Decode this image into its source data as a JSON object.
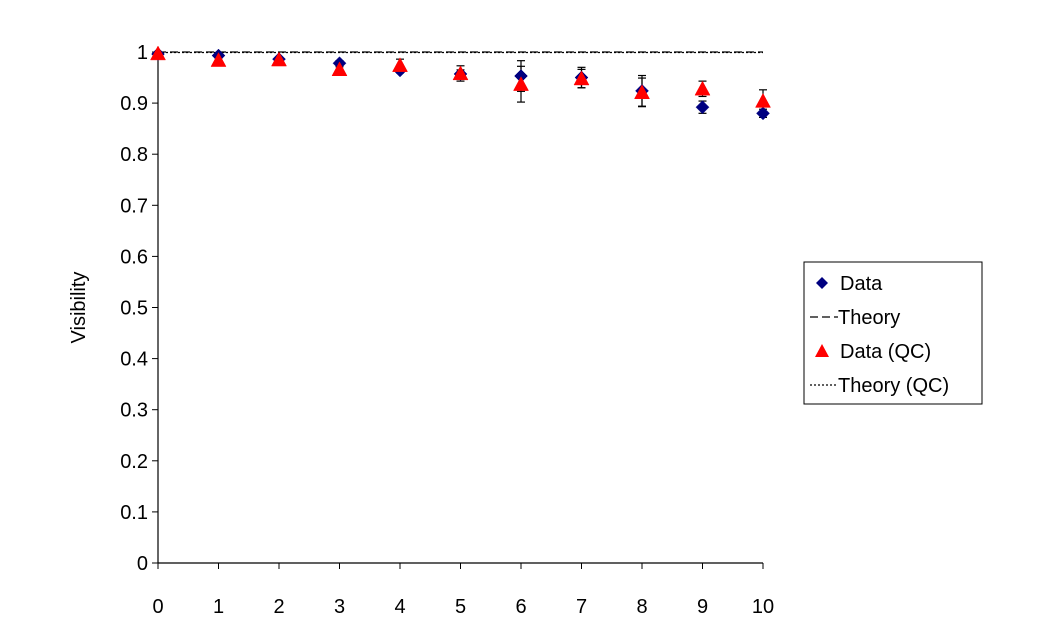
{
  "chart_data": {
    "type": "scatter",
    "title": "",
    "xlabel": "",
    "ylabel": "Visibility",
    "xlim": [
      0,
      10
    ],
    "ylim": [
      0,
      1
    ],
    "x_ticks": [
      "0",
      "1",
      "2",
      "3",
      "4",
      "5",
      "6",
      "7",
      "8",
      "9",
      "10"
    ],
    "y_ticks": [
      "0",
      "0.1",
      "0.2",
      "0.3",
      "0.4",
      "0.5",
      "0.6",
      "0.7",
      "0.8",
      "0.9",
      "1"
    ],
    "grid": false,
    "legend_position": "right",
    "series": [
      {
        "name": "Data",
        "marker": "diamond",
        "color": "#000080",
        "x": [
          0,
          1,
          2,
          3,
          4,
          5,
          6,
          7,
          8,
          9,
          10
        ],
        "y": [
          0.996,
          0.993,
          0.986,
          0.978,
          0.964,
          0.957,
          0.953,
          0.95,
          0.924,
          0.892,
          0.88
        ],
        "error": [
          0.003,
          0.003,
          0.004,
          0.005,
          0.005,
          0.008,
          0.03,
          0.02,
          0.03,
          0.012,
          0.008
        ]
      },
      {
        "name": "Theory",
        "style": "dashed",
        "color": "#000000",
        "x": [
          0,
          10
        ],
        "y": [
          1.0,
          1.0
        ]
      },
      {
        "name": "Data (QC)",
        "marker": "triangle",
        "color": "#ff0000",
        "x": [
          0,
          1,
          2,
          3,
          4,
          5,
          6,
          7,
          8,
          9,
          10
        ],
        "y": [
          0.997,
          0.984,
          0.985,
          0.966,
          0.974,
          0.958,
          0.937,
          0.948,
          0.921,
          0.928,
          0.904
        ],
        "error": [
          0.003,
          0.004,
          0.004,
          0.005,
          0.012,
          0.015,
          0.035,
          0.018,
          0.028,
          0.015,
          0.022
        ]
      },
      {
        "name": "Theory (QC)",
        "style": "dotted",
        "color": "#000000",
        "x": [
          0,
          10
        ],
        "y": [
          0.999,
          0.999
        ]
      }
    ]
  }
}
